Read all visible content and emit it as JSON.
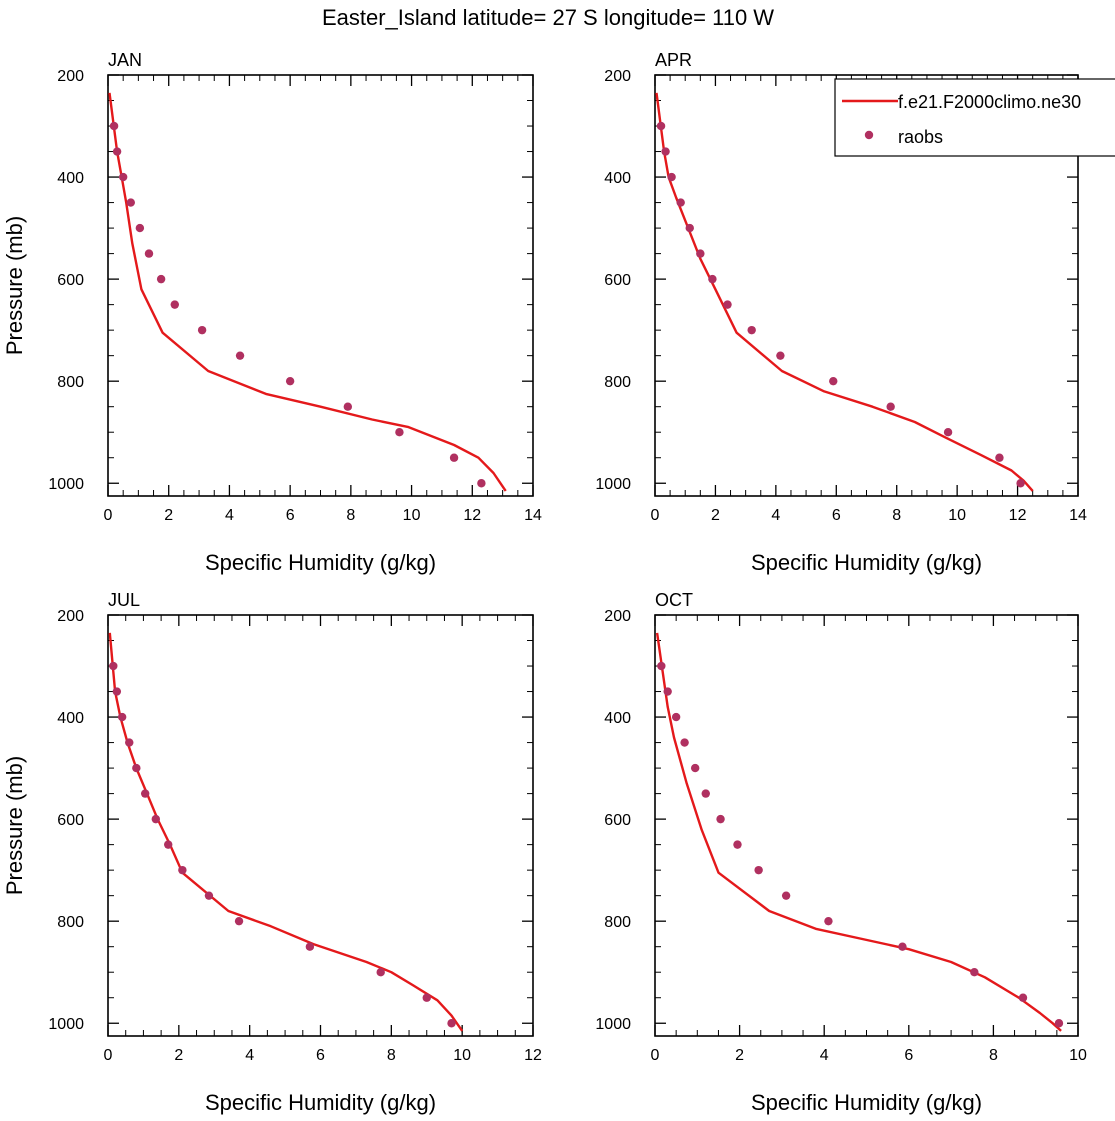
{
  "title": "Easter_Island  latitude= 27 S longitude= 110 W",
  "colors": {
    "model": "#e4191b",
    "obs": "#b03060",
    "axis": "#000000"
  },
  "legend": {
    "model_label": "f.e21.F2000climo.ne30",
    "obs_label": "raobs"
  },
  "chart_data": [
    {
      "type": "line",
      "panel_label": "JAN",
      "xlabel": "Specific Humidity (g/kg)",
      "ylabel": "Pressure (mb)",
      "xlim": [
        0,
        14
      ],
      "ylim": [
        1025,
        200
      ],
      "xticks": [
        0,
        2,
        4,
        6,
        8,
        10,
        12,
        14
      ],
      "yticks": [
        200,
        400,
        600,
        800,
        1000
      ],
      "series": [
        {
          "name": "f.e21.F2000climo.ne30",
          "kind": "line",
          "x": [
            13.1,
            12.7,
            12.2,
            11.4,
            9.9,
            8.7,
            7.0,
            5.2,
            3.3,
            1.8,
            1.1,
            0.8,
            0.6,
            0.45,
            0.3,
            0.05
          ],
          "y": [
            1015,
            980,
            950,
            925,
            890,
            875,
            850,
            825,
            780,
            705,
            620,
            530,
            450,
            400,
            350,
            235
          ]
        },
        {
          "name": "raobs",
          "kind": "scatter",
          "x": [
            12.3,
            11.4,
            9.6,
            7.9,
            6.0,
            4.35,
            3.1,
            2.2,
            1.75,
            1.35,
            1.05,
            0.75,
            0.5,
            0.3,
            0.2
          ],
          "y": [
            1000,
            950,
            900,
            850,
            800,
            750,
            700,
            650,
            600,
            550,
            500,
            450,
            400,
            350,
            300
          ]
        }
      ]
    },
    {
      "type": "line",
      "panel_label": "APR",
      "xlabel": "Specific Humidity (g/kg)",
      "ylabel": "",
      "xlim": [
        0,
        14
      ],
      "ylim": [
        1025,
        200
      ],
      "xticks": [
        0,
        2,
        4,
        6,
        8,
        10,
        12,
        14
      ],
      "yticks": [
        200,
        400,
        600,
        800,
        1000
      ],
      "show_legend": true,
      "series": [
        {
          "name": "f.e21.F2000climo.ne30",
          "kind": "line",
          "x": [
            12.5,
            12.2,
            11.8,
            10.8,
            9.6,
            8.6,
            7.2,
            5.6,
            4.2,
            2.7,
            2.0,
            1.5,
            1.1,
            0.7,
            0.45,
            0.3,
            0.05
          ],
          "y": [
            1015,
            995,
            975,
            945,
            910,
            880,
            850,
            820,
            780,
            705,
            620,
            560,
            500,
            440,
            400,
            350,
            235
          ]
        },
        {
          "name": "raobs",
          "kind": "scatter",
          "x": [
            12.1,
            11.4,
            9.7,
            7.8,
            5.9,
            4.15,
            3.2,
            2.4,
            1.9,
            1.5,
            1.15,
            0.85,
            0.55,
            0.35,
            0.2
          ],
          "y": [
            1000,
            950,
            900,
            850,
            800,
            750,
            700,
            650,
            600,
            550,
            500,
            450,
            400,
            350,
            300
          ]
        }
      ]
    },
    {
      "type": "line",
      "panel_label": "JUL",
      "xlabel": "Specific Humidity (g/kg)",
      "ylabel": "Pressure (mb)",
      "xlim": [
        0,
        12
      ],
      "ylim": [
        1025,
        200
      ],
      "xticks": [
        0,
        2,
        4,
        6,
        8,
        10,
        12
      ],
      "yticks": [
        200,
        400,
        600,
        800,
        1000
      ],
      "series": [
        {
          "name": "f.e21.F2000climo.ne30",
          "kind": "line",
          "x": [
            10.0,
            9.7,
            9.3,
            8.6,
            8.0,
            7.3,
            5.8,
            4.6,
            3.4,
            2.1,
            1.75,
            1.4,
            1.1,
            0.8,
            0.55,
            0.35,
            0.2,
            0.05
          ],
          "y": [
            1015,
            985,
            955,
            925,
            900,
            880,
            845,
            810,
            780,
            705,
            650,
            600,
            550,
            500,
            450,
            400,
            350,
            235
          ]
        },
        {
          "name": "raobs",
          "kind": "scatter",
          "x": [
            9.7,
            9.0,
            7.7,
            5.7,
            3.7,
            2.85,
            2.1,
            1.7,
            1.35,
            1.05,
            0.8,
            0.6,
            0.4,
            0.25,
            0.15
          ],
          "y": [
            1000,
            950,
            900,
            850,
            800,
            750,
            700,
            650,
            600,
            550,
            500,
            450,
            400,
            350,
            300
          ]
        }
      ]
    },
    {
      "type": "line",
      "panel_label": "OCT",
      "xlabel": "Specific Humidity (g/kg)",
      "ylabel": "",
      "xlim": [
        0,
        10
      ],
      "ylim": [
        1025,
        200
      ],
      "xticks": [
        0,
        2,
        4,
        6,
        8,
        10
      ],
      "yticks": [
        200,
        400,
        600,
        800,
        1000
      ],
      "series": [
        {
          "name": "f.e21.F2000climo.ne30",
          "kind": "line",
          "x": [
            9.6,
            9.4,
            9.1,
            8.6,
            7.8,
            7.0,
            6.0,
            4.9,
            3.8,
            2.7,
            1.5,
            1.1,
            0.75,
            0.45,
            0.3,
            0.05
          ],
          "y": [
            1015,
            1000,
            980,
            950,
            910,
            880,
            855,
            835,
            815,
            780,
            705,
            620,
            530,
            440,
            380,
            235
          ]
        },
        {
          "name": "raobs",
          "kind": "scatter",
          "x": [
            9.55,
            8.7,
            7.55,
            5.85,
            4.1,
            3.1,
            2.45,
            1.95,
            1.55,
            1.2,
            0.95,
            0.7,
            0.5,
            0.3,
            0.15
          ],
          "y": [
            1000,
            950,
            900,
            850,
            800,
            750,
            700,
            650,
            600,
            550,
            500,
            450,
            400,
            350,
            300
          ]
        }
      ]
    }
  ]
}
